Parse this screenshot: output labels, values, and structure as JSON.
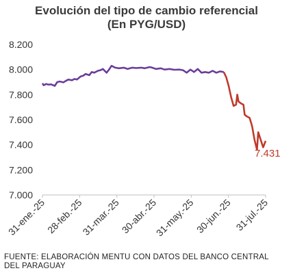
{
  "chart_data": {
    "type": "line",
    "title": "Evolución del tipo de cambio referencial",
    "subtitle": "(En PYG/USD)",
    "xlabel": "",
    "ylabel": "",
    "ylim": [
      7000,
      8200
    ],
    "y_ticks": [
      "8.200",
      "8.000",
      "7.800",
      "7.600",
      "7.400",
      "7.200",
      "7.000"
    ],
    "y_tick_values": [
      8200,
      8000,
      7800,
      7600,
      7400,
      7200,
      7000
    ],
    "x_tick_labels": [
      "31-ene.-25",
      "28-feb.-25",
      "31-mar.-25",
      "30-abr.-25",
      "31-may.-25",
      "30-jun.-25",
      "31-jul.-25"
    ],
    "x_range": [
      "2025-01-31",
      "2025-07-31"
    ],
    "grid": false,
    "series": [
      {
        "color": "#6a3d9a",
        "points": [
          [
            "2025-01-31",
            7890
          ],
          [
            "2025-02-01",
            7875
          ],
          [
            "2025-02-03",
            7885
          ],
          [
            "2025-02-05",
            7880
          ],
          [
            "2025-02-07",
            7882
          ],
          [
            "2025-02-10",
            7870
          ],
          [
            "2025-02-12",
            7900
          ],
          [
            "2025-02-14",
            7905
          ],
          [
            "2025-02-17",
            7898
          ],
          [
            "2025-02-19",
            7910
          ],
          [
            "2025-02-21",
            7920
          ],
          [
            "2025-02-24",
            7915
          ],
          [
            "2025-02-26",
            7925
          ],
          [
            "2025-02-28",
            7920
          ],
          [
            "2025-03-03",
            7945
          ],
          [
            "2025-03-05",
            7950
          ],
          [
            "2025-03-07",
            7965
          ],
          [
            "2025-03-10",
            7955
          ],
          [
            "2025-03-12",
            7980
          ],
          [
            "2025-03-14",
            7975
          ],
          [
            "2025-03-17",
            7990
          ],
          [
            "2025-03-19",
            7995
          ],
          [
            "2025-03-21",
            8005
          ],
          [
            "2025-03-24",
            7975
          ],
          [
            "2025-03-26",
            8000
          ],
          [
            "2025-03-28",
            8030
          ],
          [
            "2025-03-31",
            8015
          ],
          [
            "2025-04-03",
            8010
          ],
          [
            "2025-04-07",
            8015
          ],
          [
            "2025-04-10",
            8005
          ],
          [
            "2025-04-14",
            8015
          ],
          [
            "2025-04-17",
            8012
          ],
          [
            "2025-04-21",
            8015
          ],
          [
            "2025-04-24",
            8010
          ],
          [
            "2025-04-28",
            8020
          ],
          [
            "2025-04-30",
            8015
          ],
          [
            "2025-05-03",
            8005
          ],
          [
            "2025-05-07",
            8010
          ],
          [
            "2025-05-10",
            8000
          ],
          [
            "2025-05-14",
            8005
          ],
          [
            "2025-05-18",
            7998
          ],
          [
            "2025-05-22",
            8000
          ],
          [
            "2025-05-25",
            7995
          ],
          [
            "2025-05-28",
            7975
          ],
          [
            "2025-05-31",
            8000
          ],
          [
            "2025-06-03",
            7980
          ],
          [
            "2025-06-06",
            8005
          ],
          [
            "2025-06-09",
            7975
          ],
          [
            "2025-06-12",
            7980
          ],
          [
            "2025-06-15",
            7975
          ],
          [
            "2025-06-18",
            7990
          ],
          [
            "2025-06-21",
            7975
          ],
          [
            "2025-06-24",
            7985
          ],
          [
            "2025-06-27",
            7980
          ]
        ]
      },
      {
        "color": "#c0392b",
        "points": [
          [
            "2025-06-27",
            7980
          ],
          [
            "2025-06-29",
            7940
          ],
          [
            "2025-07-01",
            7870
          ],
          [
            "2025-07-03",
            7780
          ],
          [
            "2025-07-05",
            7710
          ],
          [
            "2025-07-07",
            7720
          ],
          [
            "2025-07-08",
            7800
          ],
          [
            "2025-07-09",
            7745
          ],
          [
            "2025-07-11",
            7730
          ],
          [
            "2025-07-13",
            7720
          ],
          [
            "2025-07-14",
            7640
          ],
          [
            "2025-07-16",
            7625
          ],
          [
            "2025-07-18",
            7615
          ],
          [
            "2025-07-20",
            7550
          ],
          [
            "2025-07-22",
            7440
          ],
          [
            "2025-07-24",
            7360
          ],
          [
            "2025-07-25",
            7500
          ],
          [
            "2025-07-27",
            7440
          ],
          [
            "2025-07-29",
            7380
          ],
          [
            "2025-07-31",
            7431
          ]
        ]
      }
    ],
    "last_value_label": "7.431",
    "last_value_color": "#c0392b"
  },
  "source_note": "FUENTE: ELABORACIÓN MENTU CON DATOS DEL BANCO CENTRAL DEL PARAGUAY"
}
